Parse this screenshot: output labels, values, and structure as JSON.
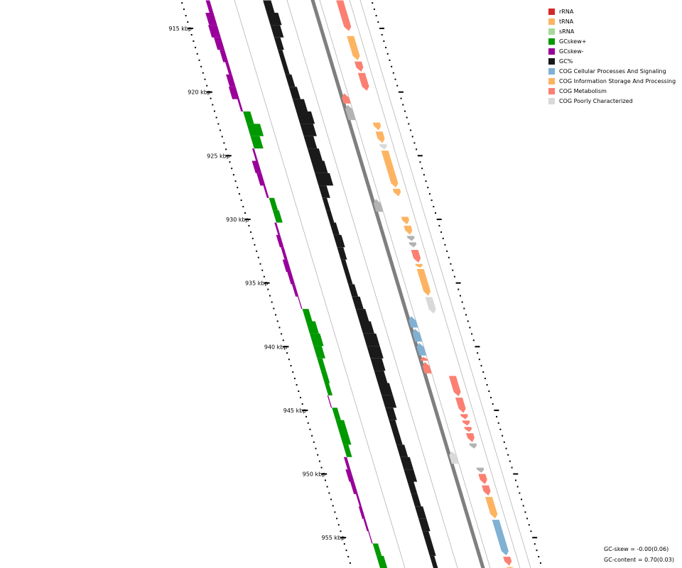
{
  "scale": {
    "unit": "kbp",
    "labels": [
      "915 kbp",
      "920 kbp",
      "925 kbp",
      "930 kbp",
      "935 kbp",
      "940 kbp",
      "945 kbp",
      "950 kbp",
      "955 kbp"
    ],
    "positions_kbp": [
      915,
      920,
      925,
      930,
      935,
      940,
      945,
      950,
      955
    ],
    "range_kbp": [
      912.8,
      957.4
    ]
  },
  "legend": [
    {
      "label": "rRNA",
      "color": "#d62728"
    },
    {
      "label": "tRNA",
      "color": "#fdb462"
    },
    {
      "label": "sRNA",
      "color": "#a6d99a"
    },
    {
      "label": "GCskew+",
      "color": "#009900"
    },
    {
      "label": "GCskew-",
      "color": "#990099"
    },
    {
      "label": "GC%",
      "color": "#1a1a1a"
    },
    {
      "label": "COG Cellular Processes And Signaling",
      "color": "#80b1d3"
    },
    {
      "label": "COG Information Storage And Processing",
      "color": "#fdb462"
    },
    {
      "label": "COG Metabolism",
      "color": "#fb8072"
    },
    {
      "label": "COG Poorly Characterized",
      "color": "#d9d9d9"
    }
  ],
  "colors": {
    "gc_skew_pos": "#009900",
    "gc_skew_neg": "#990099",
    "gc_content": "#1a1a1a",
    "backbone": "#7f7f7f",
    "guide": "#aaaaaa",
    "reverse_generic": "#b3b3b3"
  },
  "stats": {
    "gc_skew": "GC-skew = -0.00(0.06)",
    "gc_content": "GC-content = 0.70(0.03)"
  },
  "chart_data": {
    "type": "circular-genome-map",
    "gc_skew_profile": [
      -0.4,
      -0.8,
      -0.9,
      -0.7,
      -0.5,
      -0.3,
      -0.6,
      -0.7,
      -0.2,
      0.3,
      0.9,
      0.5,
      -0.2,
      -0.6,
      -0.5,
      -0.2,
      0.1,
      0.2,
      -0.2,
      -0.4,
      -0.3,
      -0.5,
      -0.4,
      -0.3,
      -0.1,
      0.2,
      0.5,
      0.6,
      0.4,
      0.1,
      0.1,
      0.0,
      -0.1,
      0.1,
      0.4,
      0.4,
      0.1,
      -0.3,
      -0.5,
      -0.4,
      -0.2,
      -0.3,
      -0.2,
      -0.1,
      0.1,
      0.3
    ],
    "gc_content_profile": [
      0.3,
      0.5,
      0.4,
      0.2,
      0.1,
      0.1,
      0.2,
      0.3,
      0.5,
      0.7,
      0.6,
      0.4,
      0.5,
      0.6,
      0.7,
      0.3,
      0.1,
      0.1,
      0.2,
      0.3,
      0.2,
      0.1,
      0.1,
      0.2,
      0.3,
      0.4,
      0.5,
      0.6,
      0.6,
      0.5,
      0.4,
      0.5,
      0.5,
      0.3,
      0.2,
      0.2,
      0.3,
      0.4,
      0.4,
      0.2,
      0.2,
      0.3,
      0.3,
      0.2,
      0.2,
      0.1
    ],
    "genes": [
      {
        "start": 912.8,
        "end": 915.2,
        "strand": 1,
        "category": "COG Metabolism"
      },
      {
        "start": 915.6,
        "end": 917.5,
        "strand": 1,
        "category": "COG Information Storage And Processing"
      },
      {
        "start": 917.6,
        "end": 918.4,
        "strand": 1,
        "category": "COG Metabolism"
      },
      {
        "start": 918.5,
        "end": 919.9,
        "strand": 1,
        "category": "COG Metabolism"
      },
      {
        "start": 920.1,
        "end": 920.9,
        "strand": -1,
        "category": "COG Metabolism"
      },
      {
        "start": 921.0,
        "end": 922.2,
        "strand": -1,
        "category": "Unassigned"
      },
      {
        "start": 922.4,
        "end": 923.0,
        "strand": 1,
        "category": "COG Information Storage And Processing"
      },
      {
        "start": 923.1,
        "end": 924.0,
        "strand": 1,
        "category": "COG Information Storage And Processing"
      },
      {
        "start": 924.1,
        "end": 924.5,
        "strand": 1,
        "category": "COG Poorly Characterized"
      },
      {
        "start": 924.6,
        "end": 927.5,
        "strand": 1,
        "category": "COG Information Storage And Processing"
      },
      {
        "start": 927.6,
        "end": 928.2,
        "strand": 1,
        "category": "COG Information Storage And Processing"
      },
      {
        "start": 928.4,
        "end": 929.4,
        "strand": -1,
        "category": "Unassigned"
      },
      {
        "start": 929.8,
        "end": 930.4,
        "strand": 1,
        "category": "COG Information Storage And Processing"
      },
      {
        "start": 930.5,
        "end": 931.2,
        "strand": 1,
        "category": "COG Information Storage And Processing"
      },
      {
        "start": 931.3,
        "end": 931.7,
        "strand": 1,
        "category": "Unassigned"
      },
      {
        "start": 931.8,
        "end": 932.2,
        "strand": 1,
        "category": "Unassigned"
      },
      {
        "start": 932.4,
        "end": 933.4,
        "strand": 1,
        "category": "COG Metabolism"
      },
      {
        "start": 933.5,
        "end": 933.8,
        "strand": 1,
        "category": "COG Information Storage And Processing"
      },
      {
        "start": 933.9,
        "end": 936.0,
        "strand": 1,
        "category": "COG Information Storage And Processing"
      },
      {
        "start": 936.1,
        "end": 937.4,
        "strand": 1,
        "category": "COG Poorly Characterized"
      },
      {
        "start": 937.6,
        "end": 938.5,
        "strand": -1,
        "category": "COG Cellular Processes And Signaling"
      },
      {
        "start": 938.6,
        "end": 939.6,
        "strand": -1,
        "category": "COG Cellular Processes And Signaling"
      },
      {
        "start": 939.7,
        "end": 940.7,
        "strand": -1,
        "category": "COG Cellular Processes And Signaling"
      },
      {
        "start": 940.8,
        "end": 941.1,
        "strand": -1,
        "category": "COG Metabolism"
      },
      {
        "start": 941.2,
        "end": 942.1,
        "strand": -1,
        "category": "COG Metabolism"
      },
      {
        "start": 942.3,
        "end": 943.9,
        "strand": 1,
        "category": "COG Metabolism"
      },
      {
        "start": 944.0,
        "end": 945.2,
        "strand": 1,
        "category": "COG Metabolism"
      },
      {
        "start": 945.3,
        "end": 945.7,
        "strand": 1,
        "category": "COG Metabolism"
      },
      {
        "start": 945.8,
        "end": 946.2,
        "strand": 1,
        "category": "COG Metabolism"
      },
      {
        "start": 946.3,
        "end": 946.7,
        "strand": 1,
        "category": "COG Metabolism"
      },
      {
        "start": 946.8,
        "end": 947.5,
        "strand": 1,
        "category": "COG Metabolism"
      },
      {
        "start": 947.6,
        "end": 948.0,
        "strand": 1,
        "category": "Unassigned"
      },
      {
        "start": 948.2,
        "end": 949.2,
        "strand": -1,
        "category": "COG Poorly Characterized"
      },
      {
        "start": 949.5,
        "end": 949.9,
        "strand": 1,
        "category": "Unassigned"
      },
      {
        "start": 950.0,
        "end": 950.8,
        "strand": 1,
        "category": "COG Metabolism"
      },
      {
        "start": 950.9,
        "end": 951.7,
        "strand": 1,
        "category": "COG Metabolism"
      },
      {
        "start": 951.8,
        "end": 953.5,
        "strand": 1,
        "category": "COG Information Storage And Processing"
      },
      {
        "start": 953.6,
        "end": 956.4,
        "strand": 1,
        "category": "COG Cellular Processes And Signaling"
      },
      {
        "start": 956.5,
        "end": 957.2,
        "strand": 1,
        "category": "COG Metabolism"
      },
      {
        "start": 957.3,
        "end": 957.4,
        "strand": 1,
        "category": "COG Information Storage And Processing"
      }
    ]
  }
}
